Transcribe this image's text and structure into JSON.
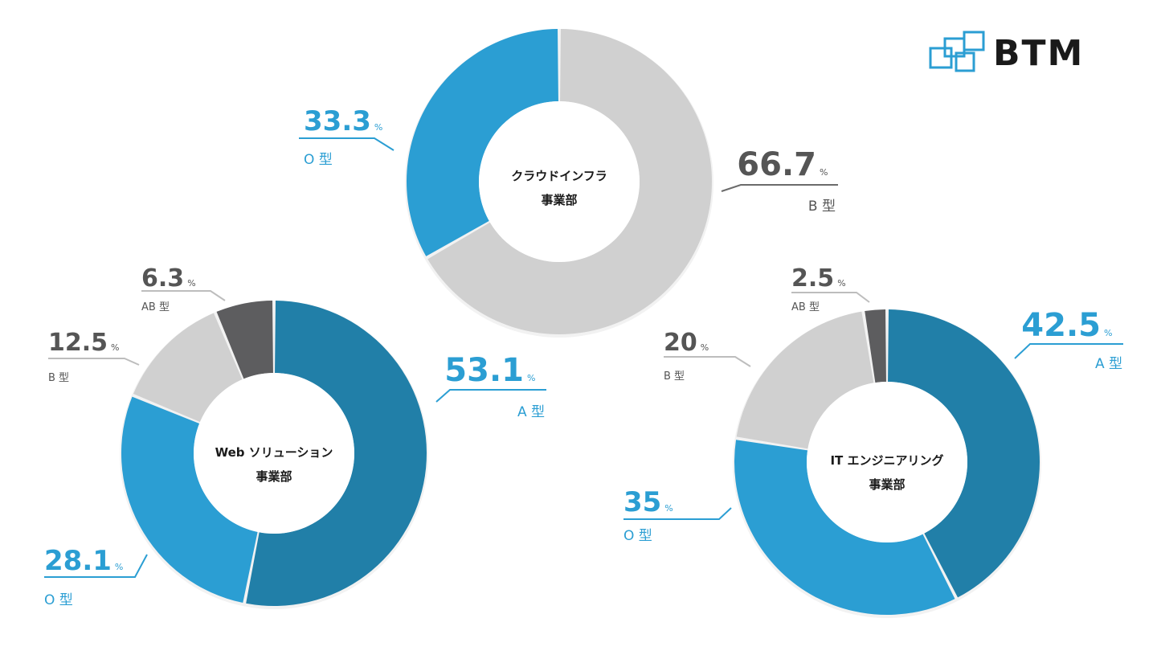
{
  "brand": {
    "name": "BTM"
  },
  "colors": {
    "blue": "#2b9ed3",
    "dark_blue": "#217fa8",
    "light_gray": "#d0d0d0",
    "dark_gray": "#5d5d5f",
    "label_dark": "#555555",
    "center_text": "#1a1a1a"
  },
  "chart_data": [
    {
      "type": "pie",
      "title": "クラウドインフラ事業部",
      "title_lines": [
        "クラウドインフラ",
        "事業部"
      ],
      "slices": [
        {
          "label": "B 型",
          "value": 66.7,
          "value_text": "66.7",
          "unit": "%",
          "color": "#d0d0d0"
        },
        {
          "label": "O 型",
          "value": 33.3,
          "value_text": "33.3",
          "unit": "%",
          "color": "#2b9ed3"
        }
      ]
    },
    {
      "type": "pie",
      "title": "Web ソリューション事業部",
      "title_lines": [
        "Web ソリューション",
        "事業部"
      ],
      "slices": [
        {
          "label": "A 型",
          "value": 53.1,
          "value_text": "53.1",
          "unit": "%",
          "color": "#217fa8"
        },
        {
          "label": "O 型",
          "value": 28.1,
          "value_text": "28.1",
          "unit": "%",
          "color": "#2b9ed3"
        },
        {
          "label": "B 型",
          "value": 12.5,
          "value_text": "12.5",
          "unit": "%",
          "color": "#d0d0d0"
        },
        {
          "label": "AB 型",
          "value": 6.3,
          "value_text": "6.3",
          "unit": "%",
          "color": "#5d5d5f"
        }
      ]
    },
    {
      "type": "pie",
      "title": "IT エンジニアリング事業部",
      "title_lines": [
        "IT エンジニアリング",
        "事業部"
      ],
      "slices": [
        {
          "label": "A 型",
          "value": 42.5,
          "value_text": "42.5",
          "unit": "%",
          "color": "#217fa8"
        },
        {
          "label": "O 型",
          "value": 35,
          "value_text": "35",
          "unit": "%",
          "color": "#2b9ed3"
        },
        {
          "label": "B 型",
          "value": 20,
          "value_text": "20",
          "unit": "%",
          "color": "#d0d0d0"
        },
        {
          "label": "AB 型",
          "value": 2.5,
          "value_text": "2.5",
          "unit": "%",
          "color": "#5d5d5f"
        }
      ]
    }
  ]
}
